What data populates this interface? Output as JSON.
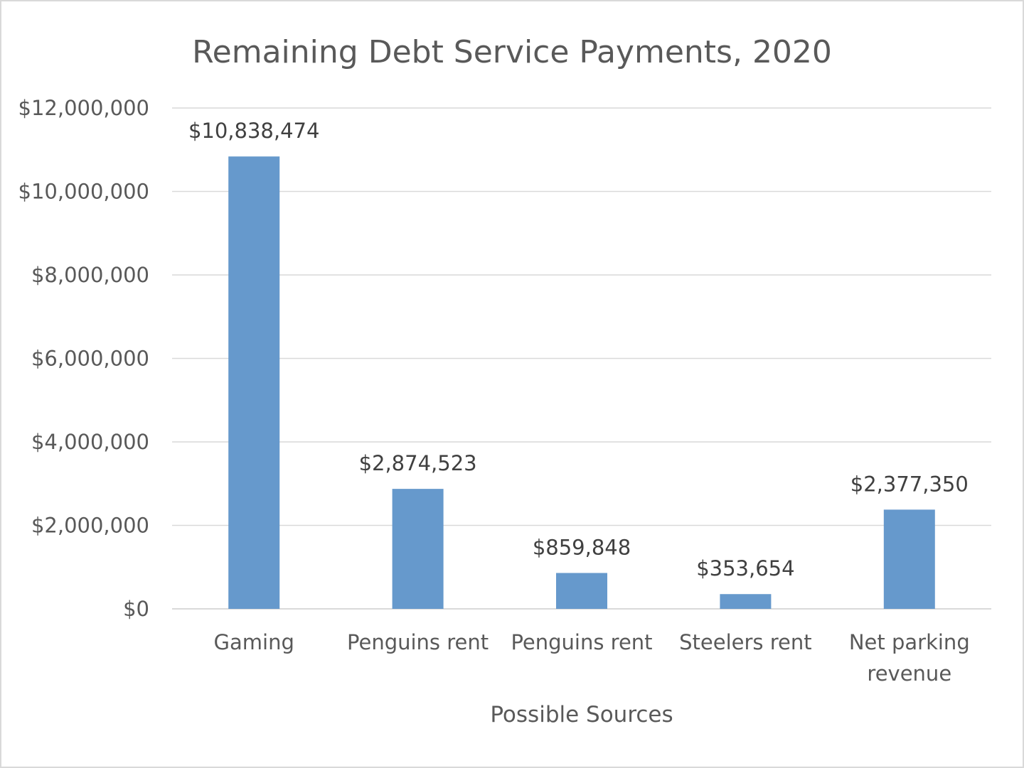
{
  "chart_data": {
    "type": "bar",
    "title": "Remaining Debt Service Payments, 2020",
    "xlabel": "Possible Sources",
    "ylabel": "",
    "categories": [
      [
        "Gaming"
      ],
      [
        "Penguins rent"
      ],
      [
        "Penguins rent"
      ],
      [
        "Steelers rent"
      ],
      [
        "Net parking",
        "revenue"
      ]
    ],
    "values": [
      10838474,
      2874523,
      859848,
      353654,
      2377350
    ],
    "data_labels": [
      "$10,838,474",
      "$2,874,523",
      "$859,848",
      "$353,654",
      "$2,377,350"
    ],
    "ylim": [
      0,
      12000000
    ],
    "yticks": [
      0,
      2000000,
      4000000,
      6000000,
      8000000,
      10000000,
      12000000
    ],
    "ytick_labels": [
      "$0",
      "$2,000,000",
      "$4,000,000",
      "$6,000,000",
      "$8,000,000",
      "$10,000,000",
      "$12,000,000"
    ],
    "grid": true,
    "legend": "none",
    "bar_color": "#6699cc"
  }
}
